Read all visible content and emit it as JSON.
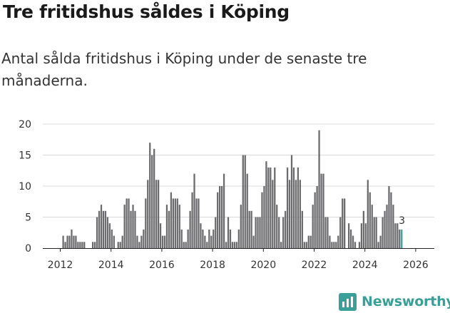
{
  "page": {
    "title": "Tre fritidshus såldes i Köping",
    "subtitle": "Antal sålda fritidshus i Köping under de senaste tre månaderna."
  },
  "brand": {
    "name": "Newsworthy",
    "icon": "newsworthy-bar-chart-icon",
    "color": "#3a9e99"
  },
  "colors": {
    "bar": "#6b6b6e",
    "highlight": "#3a9e99",
    "grid": "#d9d9d9",
    "axis": "#222222"
  },
  "chart_data": {
    "type": "bar",
    "title": "",
    "xlabel": "",
    "ylabel": "",
    "ylim": [
      0,
      20
    ],
    "yticks": [
      0,
      5,
      10,
      15,
      20
    ],
    "xticks": [
      "2012",
      "2014",
      "2016",
      "2018",
      "2020",
      "2022",
      "2024",
      "2026"
    ],
    "start": "2012-01",
    "interval": "monthly",
    "grid": true,
    "legend": "none",
    "values": [
      0,
      2,
      1,
      2,
      2,
      3,
      2,
      2,
      1,
      1,
      1,
      1,
      0,
      0,
      0,
      1,
      1,
      5,
      6,
      7,
      6,
      6,
      5,
      4,
      3,
      2,
      0,
      1,
      1,
      2,
      7,
      8,
      8,
      6,
      7,
      6,
      2,
      1,
      2,
      3,
      8,
      11,
      17,
      15,
      16,
      11,
      11,
      4,
      2,
      2,
      7,
      6,
      9,
      8,
      8,
      8,
      7,
      3,
      1,
      1,
      3,
      6,
      9,
      12,
      8,
      8,
      4,
      3,
      2,
      1,
      3,
      2,
      3,
      5,
      9,
      10,
      10,
      12,
      1,
      5,
      3,
      1,
      1,
      1,
      3,
      7,
      15,
      15,
      12,
      6,
      6,
      2,
      5,
      5,
      5,
      9,
      10,
      14,
      13,
      13,
      11,
      13,
      7,
      5,
      1,
      5,
      6,
      13,
      11,
      15,
      13,
      11,
      13,
      11,
      6,
      1,
      1,
      2,
      2,
      7,
      9,
      10,
      19,
      12,
      12,
      5,
      5,
      2,
      1,
      1,
      1,
      2,
      5,
      8,
      8,
      0,
      4,
      3,
      2,
      1,
      0,
      1,
      4,
      6,
      4,
      11,
      9,
      7,
      5,
      5,
      1,
      2,
      5,
      6,
      7,
      10,
      9,
      7,
      4,
      4,
      3,
      3
    ],
    "last_value": 3,
    "last_label": "3"
  }
}
